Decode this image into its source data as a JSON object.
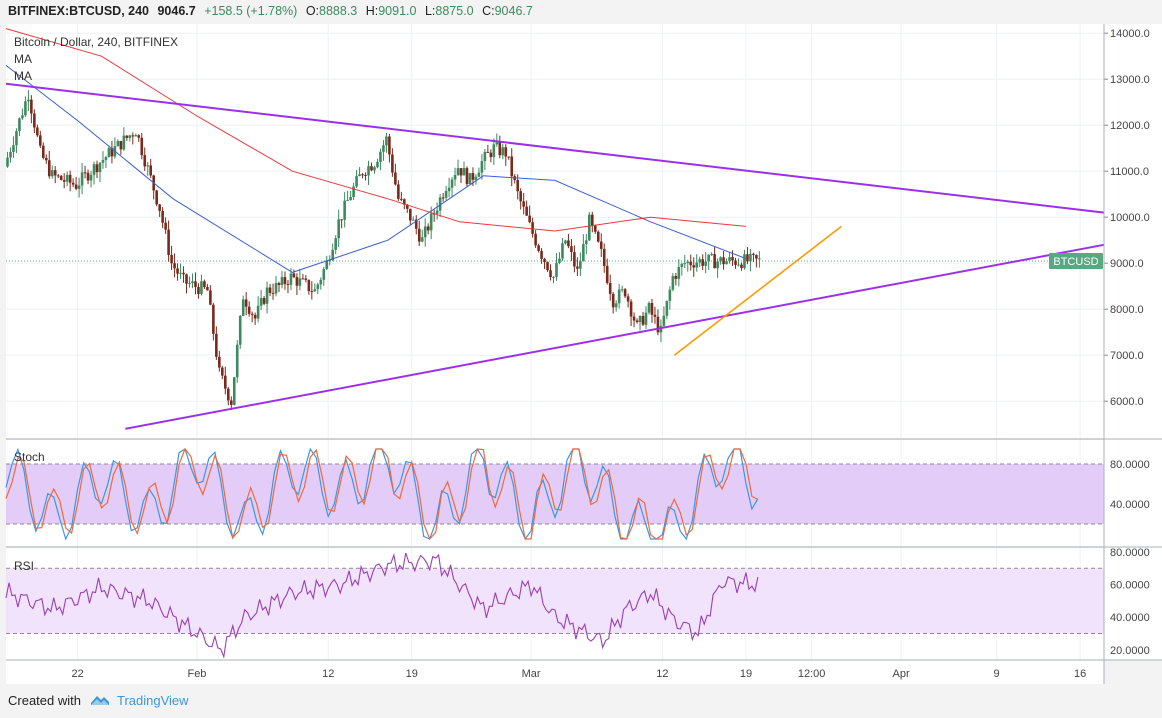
{
  "header": {
    "symbol": "BITFINEX:BTCUSD, 240",
    "last": "9046.7",
    "change": "+158.5 (+1.78%)",
    "open_label": "O:",
    "open": "8888.3",
    "high_label": "H:",
    "high": "9091.0",
    "low_label": "L:",
    "low": "8875.0",
    "close_label": "C:",
    "close": "9046.7"
  },
  "legend": {
    "title": "Bitcoin / Dollar, 240, BITFINEX",
    "ma1": "MA",
    "ma2": "MA"
  },
  "price_badge": "BTCUSD",
  "indicators": {
    "stoch_label": "Stoch",
    "rsi_label": "RSI"
  },
  "footer": {
    "created_with": "Created with",
    "brand": "TradingView"
  },
  "colors": {
    "up": "#3c8a5e",
    "down": "#7a2a1c",
    "ma_fast": "#3b5fd6",
    "ma_slow": "#e8383d",
    "trendline": "#9b30e8",
    "short_trendline": "#ff9900",
    "stoch_k": "#3a98e3",
    "stoch_d": "#ef6a3a",
    "rsi": "#9a3fb5",
    "badge": "#58a982"
  },
  "chart_data": [
    {
      "type": "line",
      "title": "Bitcoin / Dollar, 240, BITFINEX",
      "xlabel": "",
      "ylabel": "",
      "ylim": [
        5200,
        14200
      ],
      "y_ticks": [
        "14000.0",
        "13000.0",
        "12000.0",
        "11000.0",
        "10000.0",
        "9000.0",
        "8000.0",
        "7000.0",
        "6000.0"
      ],
      "x_ticks": [
        "22",
        "Feb",
        "12",
        "19",
        "Mar",
        "12",
        "19",
        "12:00",
        "Apr",
        "9",
        "16"
      ],
      "x_tick_days": [
        22,
        32,
        43,
        50,
        60,
        71,
        78,
        83.5,
        91,
        99,
        106
      ],
      "x_day_reference": "day numbers counted from Jan 1 of the chart year, 1 = Jan 1",
      "last_price": 9046.7,
      "series": [
        {
          "name": "",
          "x": [
            16,
            18,
            19,
            20,
            22,
            24,
            27,
            29,
            30,
            31,
            33,
            34,
            35,
            36,
            37,
            38,
            39,
            40,
            42,
            43,
            44,
            45,
            46,
            47,
            48,
            49,
            50,
            51,
            52,
            53,
            54,
            55,
            56,
            57,
            58,
            59,
            60,
            61,
            62,
            63,
            64,
            65,
            66,
            67,
            68,
            69,
            70,
            71,
            72,
            73,
            74,
            75,
            76,
            77,
            78,
            79
          ],
          "y": [
            11100,
            12700,
            11400,
            10900,
            10700,
            11200,
            11900,
            10200,
            9000,
            8600,
            8400,
            6600,
            6000,
            8300,
            7800,
            8400,
            8500,
            8700,
            8400,
            9000,
            9900,
            10500,
            11000,
            11200,
            11700,
            10400,
            10000,
            9500,
            10100,
            10700,
            11100,
            10800,
            11200,
            11500,
            11400,
            10500,
            9800,
            9200,
            8700,
            9500,
            8800,
            9900,
            9200,
            8200,
            8400,
            7600,
            8000,
            7500,
            8700,
            9000,
            9046.7,
            9046.7,
            9046.7,
            9046.7,
            9046.7,
            9046.7
          ]
        },
        {
          "name": "",
          "x": [
            16,
            22,
            30,
            40,
            48,
            56,
            62,
            70,
            78
          ],
          "y": [
            13300,
            12100,
            10400,
            8800,
            9500,
            10900,
            10800,
            9900,
            9100
          ]
        },
        {
          "name": "",
          "x": [
            16,
            24,
            32,
            40,
            48,
            54,
            62,
            70,
            78
          ],
          "y": [
            14100,
            13500,
            12200,
            11000,
            10400,
            9900,
            9700,
            10000,
            9800
          ]
        },
        {
          "name": "",
          "x": [
            16,
            108
          ],
          "y": [
            12900,
            10100
          ]
        },
        {
          "name": "",
          "x": [
            26,
            108
          ],
          "y": [
            5400,
            9400
          ]
        },
        {
          "name": "",
          "x": [
            72,
            86
          ],
          "y": [
            7000,
            9800
          ]
        }
      ]
    },
    {
      "type": "line",
      "title": "Stoch",
      "ylim": [
        0,
        100
      ],
      "y_ticks": [
        "80.0000",
        "40.0000"
      ],
      "bands": [
        20,
        80
      ],
      "series": [
        {
          "name": "",
          "x": [
            16,
            20,
            24,
            28,
            32,
            36,
            40,
            44,
            48,
            52,
            56,
            60,
            64,
            68,
            72,
            76,
            79
          ],
          "y": [
            80,
            20,
            70,
            25,
            90,
            15,
            80,
            50,
            90,
            15,
            85,
            20,
            90,
            15,
            10,
            90,
            60
          ]
        },
        {
          "name": "",
          "x": [
            16,
            20,
            24,
            28,
            32,
            36,
            40,
            44,
            48,
            52,
            56,
            60,
            64,
            68,
            72,
            76,
            79
          ],
          "y": [
            75,
            25,
            65,
            30,
            85,
            20,
            75,
            55,
            85,
            20,
            80,
            25,
            85,
            20,
            15,
            85,
            70
          ]
        }
      ]
    },
    {
      "type": "line",
      "title": "RSI",
      "ylim": [
        15,
        80
      ],
      "y_ticks": [
        "80.0000",
        "60.0000",
        "40.0000",
        "20.0000"
      ],
      "bands": [
        30,
        70
      ],
      "series": [
        {
          "name": "",
          "x": [
            16,
            20,
            24,
            28,
            32,
            34,
            36,
            40,
            44,
            48,
            52,
            56,
            60,
            62,
            66,
            68,
            70,
            72,
            74,
            76,
            79
          ],
          "y": [
            55,
            45,
            58,
            50,
            30,
            20,
            40,
            55,
            60,
            72,
            75,
            45,
            60,
            40,
            25,
            45,
            55,
            38,
            30,
            62,
            60
          ]
        }
      ]
    }
  ]
}
